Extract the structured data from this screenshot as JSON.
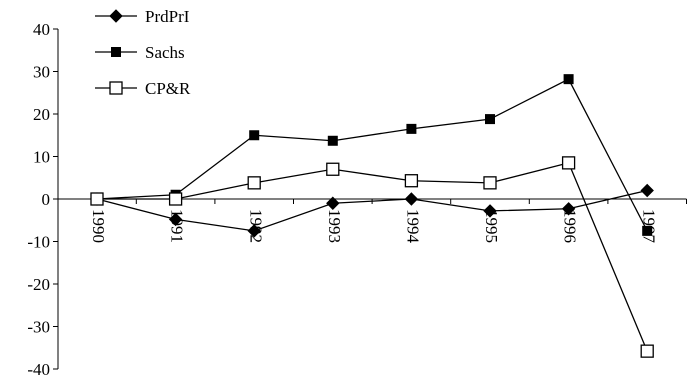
{
  "chart_data": {
    "type": "line",
    "title": "",
    "xlabel": "",
    "ylabel": "",
    "x": [
      "1990",
      "1991",
      "1992",
      "1993",
      "1994",
      "1995",
      "1996",
      "1997"
    ],
    "ylim": [
      -40,
      40
    ],
    "yticks": [
      40,
      30,
      20,
      10,
      0,
      -10,
      -20,
      -30,
      -40
    ],
    "grid": false,
    "legend_position": "top-left",
    "series": [
      {
        "name": "PrdPrI",
        "marker": "filled-diamond",
        "color": "#000000",
        "values": [
          0,
          -4.8,
          -7.5,
          -1.0,
          0,
          -2.8,
          -2.3,
          2.0
        ]
      },
      {
        "name": "Sachs",
        "marker": "filled-square",
        "color": "#000000",
        "values": [
          0,
          1.0,
          15.0,
          13.7,
          16.5,
          18.8,
          28.2,
          -7.5
        ]
      },
      {
        "name": "CP&R",
        "marker": "open-square",
        "color": "#000000",
        "values": [
          0,
          0,
          3.8,
          7.0,
          4.3,
          3.8,
          8.5,
          -35.8
        ]
      }
    ]
  }
}
